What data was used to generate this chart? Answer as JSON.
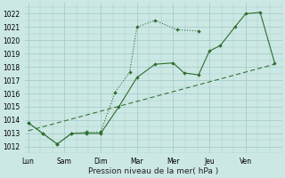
{
  "background_color": "#cce8e4",
  "grid_color": "#a8ccca",
  "line_color": "#2d6e30",
  "xlabel": "Pression niveau de la mer( hPa )",
  "ylim": [
    1011.5,
    1022.8
  ],
  "yticks": [
    1012,
    1013,
    1014,
    1015,
    1016,
    1017,
    1018,
    1019,
    1020,
    1021,
    1022
  ],
  "x_labels": [
    "Lun",
    "Sam",
    "Dim",
    "Mar",
    "Mer",
    "Jeu",
    "Ven"
  ],
  "x_positions": [
    0,
    1,
    2,
    3,
    4,
    5,
    6
  ],
  "xlim": [
    -0.1,
    7.0
  ],
  "dotted_x": [
    0.0,
    0.4,
    0.8,
    1.2,
    1.6,
    2.0,
    2.4,
    2.8,
    3.0,
    3.5,
    4.1,
    4.7
  ],
  "dotted_y": [
    1013.8,
    1013.0,
    1012.2,
    1013.0,
    1013.1,
    1013.1,
    1016.1,
    1017.6,
    1021.0,
    1021.5,
    1020.8,
    1020.7
  ],
  "solid_x": [
    0.0,
    0.4,
    0.8,
    1.2,
    1.6,
    2.0,
    2.5,
    3.0,
    3.5,
    4.0,
    4.3,
    4.7,
    5.0,
    5.3,
    5.7,
    6.0,
    6.4,
    6.8
  ],
  "solid_y": [
    1013.8,
    1013.0,
    1012.2,
    1013.0,
    1013.0,
    1013.0,
    1015.0,
    1017.2,
    1018.2,
    1018.3,
    1017.55,
    1017.4,
    1019.2,
    1019.6,
    1021.0,
    1022.0,
    1022.1,
    1018.3
  ],
  "trend_x": [
    0.0,
    6.8
  ],
  "trend_y": [
    1013.2,
    1018.2
  ]
}
